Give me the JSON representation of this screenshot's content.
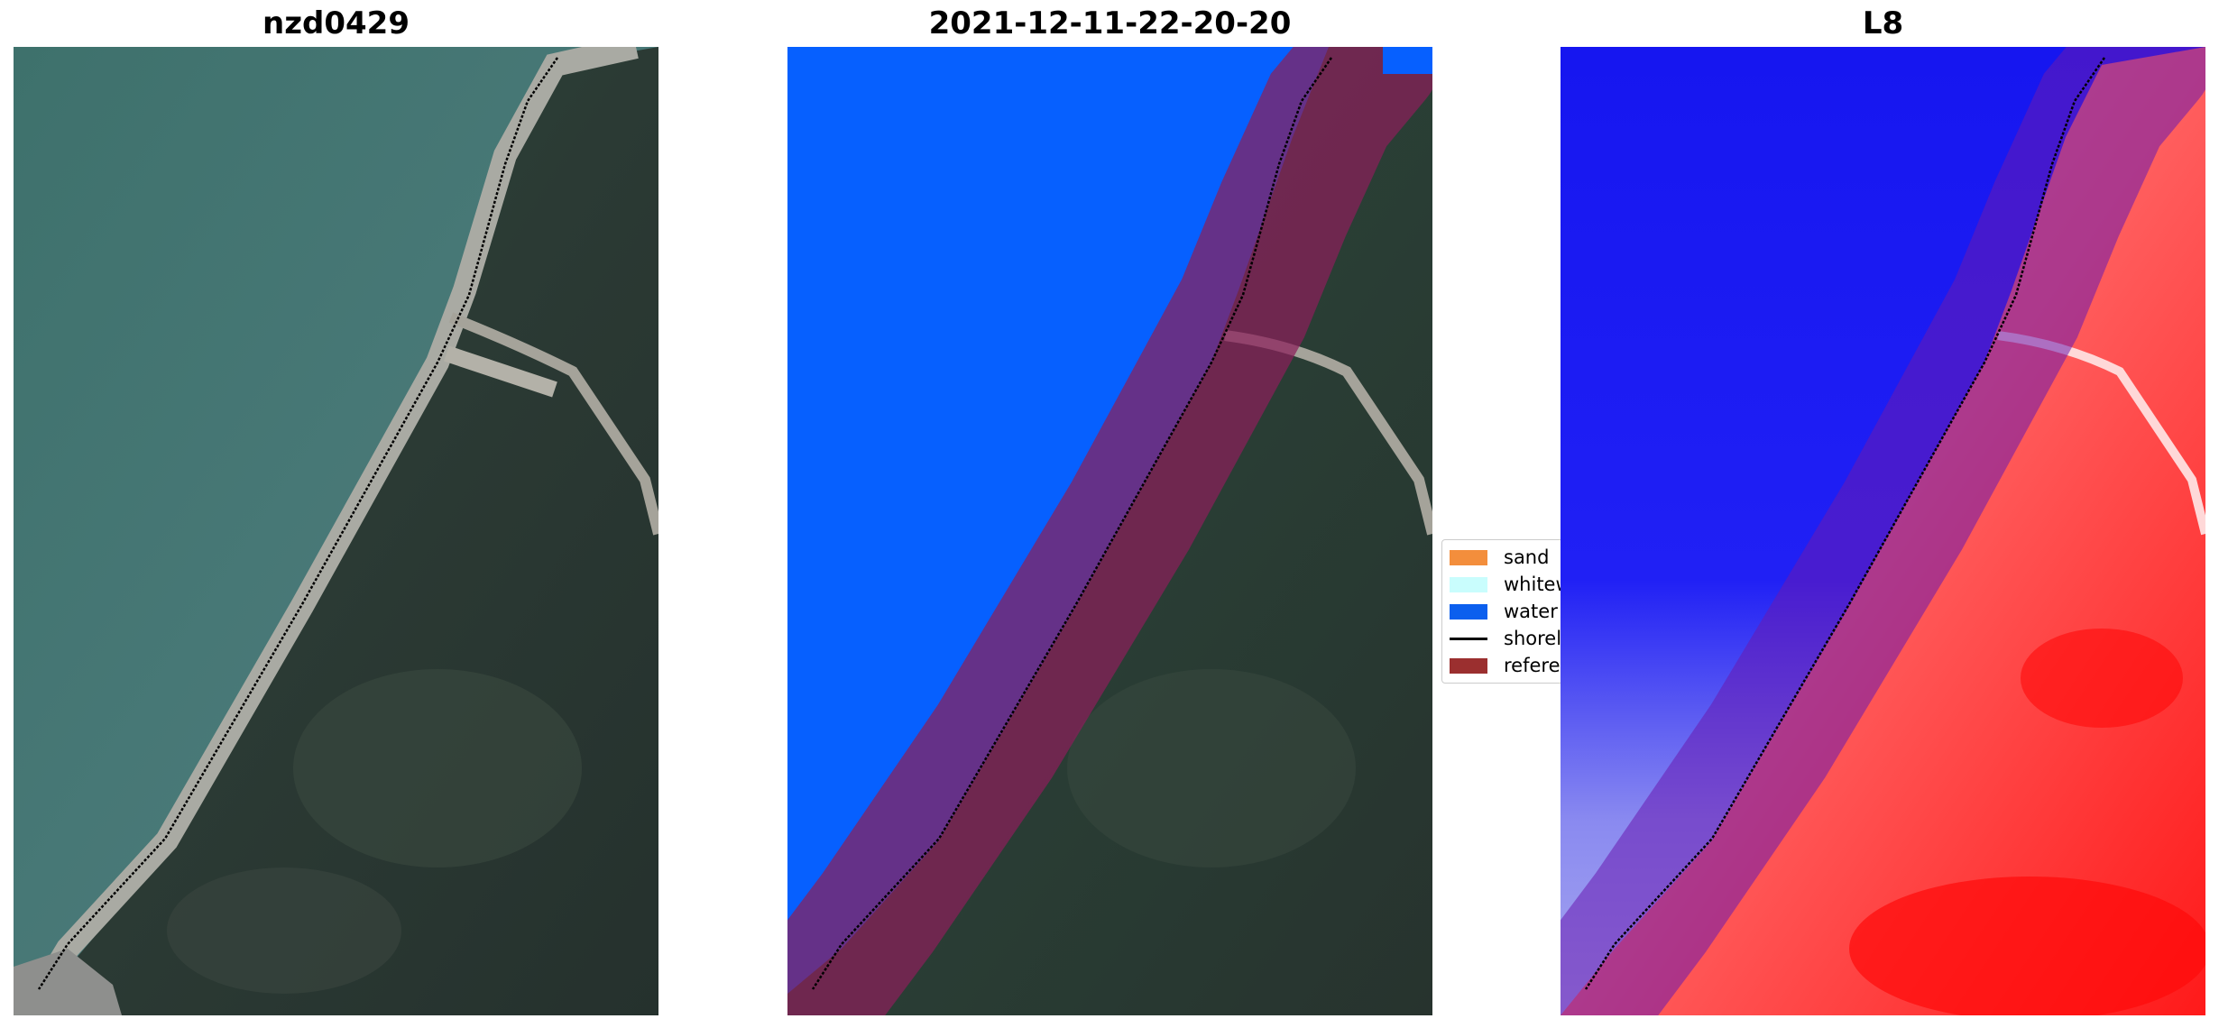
{
  "panels": [
    {
      "title": "nzd0429"
    },
    {
      "title": "2021-12-11-22-20-20"
    },
    {
      "title": "L8"
    }
  ],
  "legend": {
    "items": [
      {
        "label": "sand",
        "color": "#f38e3c",
        "kind": "patch"
      },
      {
        "label": "whitewater",
        "color": "#c9fdfd",
        "kind": "patch"
      },
      {
        "label": "water",
        "color": "#0b5fee",
        "kind": "patch"
      },
      {
        "label": "shoreline",
        "color": "#000000",
        "kind": "line"
      },
      {
        "label": "reference shoreline buffer",
        "color": "#9b2f2f",
        "kind": "patch"
      }
    ]
  },
  "colors": {
    "ocean": "#3b6f6a",
    "land": "#2c3b34",
    "beach": "#9b9e98",
    "water_class": "#0660ff",
    "buffer": "#8a1f5a",
    "index_high": "#ff1010",
    "index_low": "#1010ff"
  }
}
